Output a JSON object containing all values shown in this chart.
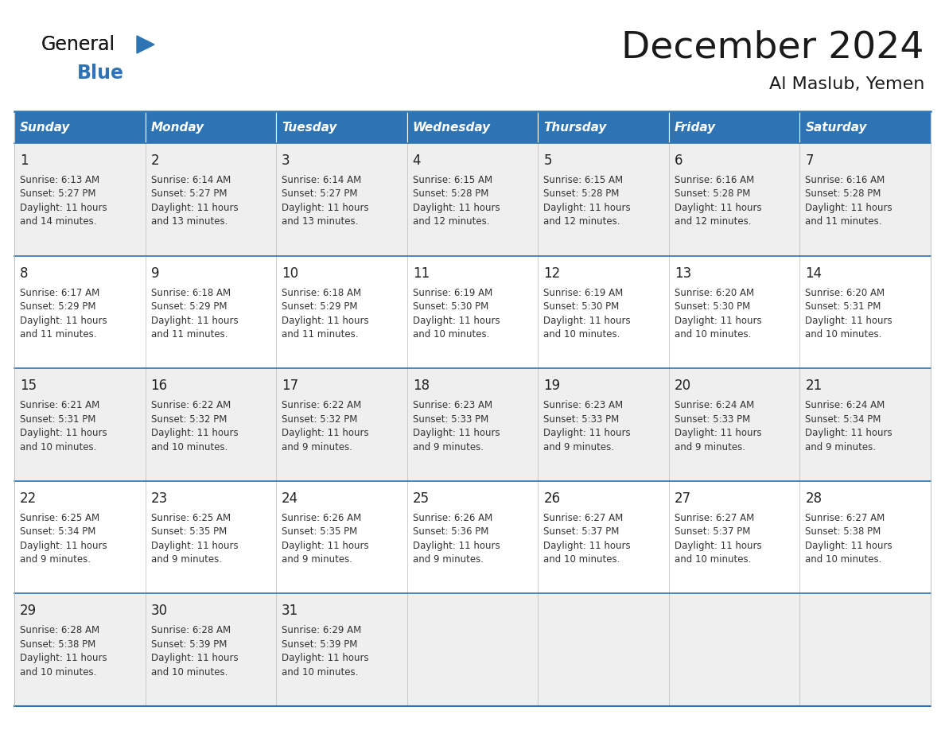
{
  "title": "December 2024",
  "subtitle": "Al Maslub, Yemen",
  "header_bg_color": "#2E74B5",
  "header_text_color": "#FFFFFF",
  "row_bg_even": "#EFEFEF",
  "row_bg_odd": "#FFFFFF",
  "cell_text_color": "#333333",
  "day_headers": [
    "Sunday",
    "Monday",
    "Tuesday",
    "Wednesday",
    "Thursday",
    "Friday",
    "Saturday"
  ],
  "calendar_data": [
    [
      {
        "day": "1",
        "sunrise": "6:13 AM",
        "sunset": "5:27 PM",
        "daylight": "11 hours",
        "daylight2": "and 14 minutes."
      },
      {
        "day": "2",
        "sunrise": "6:14 AM",
        "sunset": "5:27 PM",
        "daylight": "11 hours",
        "daylight2": "and 13 minutes."
      },
      {
        "day": "3",
        "sunrise": "6:14 AM",
        "sunset": "5:27 PM",
        "daylight": "11 hours",
        "daylight2": "and 13 minutes."
      },
      {
        "day": "4",
        "sunrise": "6:15 AM",
        "sunset": "5:28 PM",
        "daylight": "11 hours",
        "daylight2": "and 12 minutes."
      },
      {
        "day": "5",
        "sunrise": "6:15 AM",
        "sunset": "5:28 PM",
        "daylight": "11 hours",
        "daylight2": "and 12 minutes."
      },
      {
        "day": "6",
        "sunrise": "6:16 AM",
        "sunset": "5:28 PM",
        "daylight": "11 hours",
        "daylight2": "and 12 minutes."
      },
      {
        "day": "7",
        "sunrise": "6:16 AM",
        "sunset": "5:28 PM",
        "daylight": "11 hours",
        "daylight2": "and 11 minutes."
      }
    ],
    [
      {
        "day": "8",
        "sunrise": "6:17 AM",
        "sunset": "5:29 PM",
        "daylight": "11 hours",
        "daylight2": "and 11 minutes."
      },
      {
        "day": "9",
        "sunrise": "6:18 AM",
        "sunset": "5:29 PM",
        "daylight": "11 hours",
        "daylight2": "and 11 minutes."
      },
      {
        "day": "10",
        "sunrise": "6:18 AM",
        "sunset": "5:29 PM",
        "daylight": "11 hours",
        "daylight2": "and 11 minutes."
      },
      {
        "day": "11",
        "sunrise": "6:19 AM",
        "sunset": "5:30 PM",
        "daylight": "11 hours",
        "daylight2": "and 10 minutes."
      },
      {
        "day": "12",
        "sunrise": "6:19 AM",
        "sunset": "5:30 PM",
        "daylight": "11 hours",
        "daylight2": "and 10 minutes."
      },
      {
        "day": "13",
        "sunrise": "6:20 AM",
        "sunset": "5:30 PM",
        "daylight": "11 hours",
        "daylight2": "and 10 minutes."
      },
      {
        "day": "14",
        "sunrise": "6:20 AM",
        "sunset": "5:31 PM",
        "daylight": "11 hours",
        "daylight2": "and 10 minutes."
      }
    ],
    [
      {
        "day": "15",
        "sunrise": "6:21 AM",
        "sunset": "5:31 PM",
        "daylight": "11 hours",
        "daylight2": "and 10 minutes."
      },
      {
        "day": "16",
        "sunrise": "6:22 AM",
        "sunset": "5:32 PM",
        "daylight": "11 hours",
        "daylight2": "and 10 minutes."
      },
      {
        "day": "17",
        "sunrise": "6:22 AM",
        "sunset": "5:32 PM",
        "daylight": "11 hours",
        "daylight2": "and 9 minutes."
      },
      {
        "day": "18",
        "sunrise": "6:23 AM",
        "sunset": "5:33 PM",
        "daylight": "11 hours",
        "daylight2": "and 9 minutes."
      },
      {
        "day": "19",
        "sunrise": "6:23 AM",
        "sunset": "5:33 PM",
        "daylight": "11 hours",
        "daylight2": "and 9 minutes."
      },
      {
        "day": "20",
        "sunrise": "6:24 AM",
        "sunset": "5:33 PM",
        "daylight": "11 hours",
        "daylight2": "and 9 minutes."
      },
      {
        "day": "21",
        "sunrise": "6:24 AM",
        "sunset": "5:34 PM",
        "daylight": "11 hours",
        "daylight2": "and 9 minutes."
      }
    ],
    [
      {
        "day": "22",
        "sunrise": "6:25 AM",
        "sunset": "5:34 PM",
        "daylight": "11 hours",
        "daylight2": "and 9 minutes."
      },
      {
        "day": "23",
        "sunrise": "6:25 AM",
        "sunset": "5:35 PM",
        "daylight": "11 hours",
        "daylight2": "and 9 minutes."
      },
      {
        "day": "24",
        "sunrise": "6:26 AM",
        "sunset": "5:35 PM",
        "daylight": "11 hours",
        "daylight2": "and 9 minutes."
      },
      {
        "day": "25",
        "sunrise": "6:26 AM",
        "sunset": "5:36 PM",
        "daylight": "11 hours",
        "daylight2": "and 9 minutes."
      },
      {
        "day": "26",
        "sunrise": "6:27 AM",
        "sunset": "5:37 PM",
        "daylight": "11 hours",
        "daylight2": "and 10 minutes."
      },
      {
        "day": "27",
        "sunrise": "6:27 AM",
        "sunset": "5:37 PM",
        "daylight": "11 hours",
        "daylight2": "and 10 minutes."
      },
      {
        "day": "28",
        "sunrise": "6:27 AM",
        "sunset": "5:38 PM",
        "daylight": "11 hours",
        "daylight2": "and 10 minutes."
      }
    ],
    [
      {
        "day": "29",
        "sunrise": "6:28 AM",
        "sunset": "5:38 PM",
        "daylight": "11 hours",
        "daylight2": "and 10 minutes."
      },
      {
        "day": "30",
        "sunrise": "6:28 AM",
        "sunset": "5:39 PM",
        "daylight": "11 hours",
        "daylight2": "and 10 minutes."
      },
      {
        "day": "31",
        "sunrise": "6:29 AM",
        "sunset": "5:39 PM",
        "daylight": "11 hours",
        "daylight2": "and 10 minutes."
      },
      null,
      null,
      null,
      null
    ]
  ],
  "logo_general_color": "#1a1a1a",
  "logo_blue_color": "#2E74B5",
  "logo_triangle_color": "#2E74B5",
  "divider_color": "#2E74B5",
  "border_color": "#AAAAAA",
  "title_color": "#1a1a1a",
  "header_italic": true
}
